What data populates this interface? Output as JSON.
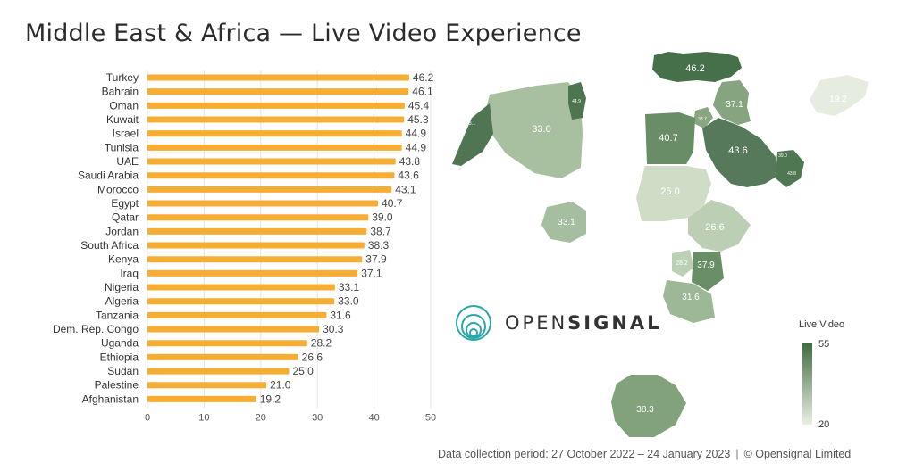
{
  "page": {
    "title": "Middle East & Africa — Live Video Experience",
    "footer_period": "Data collection period: 27 October 2022 – 24 January 2023",
    "footer_separator": "|",
    "footer_copyright": "© Opensignal Limited"
  },
  "brand": {
    "name_light": "OPEN",
    "name_bold": "SIGNAL",
    "icon": "opensignal-rings-icon",
    "color": "#2aa7a7"
  },
  "legend": {
    "title": "Live Video",
    "max": "55",
    "min": "20"
  },
  "colors": {
    "bar": "#f6ad34",
    "map_dark": "#3f6a3f",
    "map_light": "#eaf0e4",
    "grid": "#e4e4e4"
  },
  "chart_data": {
    "type": "bar",
    "orientation": "horizontal",
    "title": "Middle East & Africa — Live Video Experience",
    "xlabel": "",
    "ylabel": "",
    "xlim": [
      0,
      50
    ],
    "ticks": [
      0,
      10,
      20,
      30,
      40,
      50
    ],
    "grid": true,
    "categories": [
      "Turkey",
      "Bahrain",
      "Oman",
      "Kuwait",
      "Israel",
      "Tunisia",
      "UAE",
      "Saudi Arabia",
      "Morocco",
      "Egypt",
      "Qatar",
      "Jordan",
      "South Africa",
      "Kenya",
      "Iraq",
      "Nigeria",
      "Algeria",
      "Tanzania",
      "Dem. Rep. Congo",
      "Uganda",
      "Ethiopia",
      "Sudan",
      "Palestine",
      "Afghanistan"
    ],
    "values": [
      46.2,
      46.1,
      45.4,
      45.3,
      44.9,
      44.9,
      43.8,
      43.6,
      43.1,
      40.7,
      39.0,
      38.7,
      38.3,
      37.9,
      37.1,
      33.1,
      33.0,
      31.6,
      30.3,
      28.2,
      26.6,
      25.0,
      21.0,
      19.2
    ],
    "value_labels": [
      "46.2",
      "46.1",
      "45.4",
      "45.3",
      "44.9",
      "44.9",
      "43.8",
      "43.6",
      "43.1",
      "40.7",
      "39.0",
      "38.7",
      "38.3",
      "37.9",
      "37.1",
      "33.1",
      "33.0",
      "31.6",
      "30.3",
      "28.2",
      "26.6",
      "25.0",
      "21.0",
      "19.2"
    ]
  },
  "map_labels": [
    {
      "country": "Turkey",
      "label": "46.2"
    },
    {
      "country": "Iraq",
      "label": "37.1"
    },
    {
      "country": "Afghanistan",
      "label": "19.2"
    },
    {
      "country": "Algeria",
      "label": "33.0"
    },
    {
      "country": "Egypt",
      "label": "40.7"
    },
    {
      "country": "Saudi Arabia",
      "label": "43.6"
    },
    {
      "country": "Sudan",
      "label": "25.0"
    },
    {
      "country": "Nigeria",
      "label": "33.1"
    },
    {
      "country": "Ethiopia",
      "label": "26.6"
    },
    {
      "country": "Uganda",
      "label": "28.2"
    },
    {
      "country": "Kenya",
      "label": "37.9"
    },
    {
      "country": "Tanzania",
      "label": "31.6"
    },
    {
      "country": "South Africa",
      "label": "38.3"
    },
    {
      "country": "Morocco",
      "label": "43.1"
    },
    {
      "country": "Tunisia",
      "label": "44.9"
    },
    {
      "country": "Jordan",
      "label": "38.7"
    },
    {
      "country": "Qatar",
      "label": "39.0"
    },
    {
      "country": "UAE",
      "label": "43.8"
    },
    {
      "country": "Oman",
      "label": "45.4"
    }
  ]
}
